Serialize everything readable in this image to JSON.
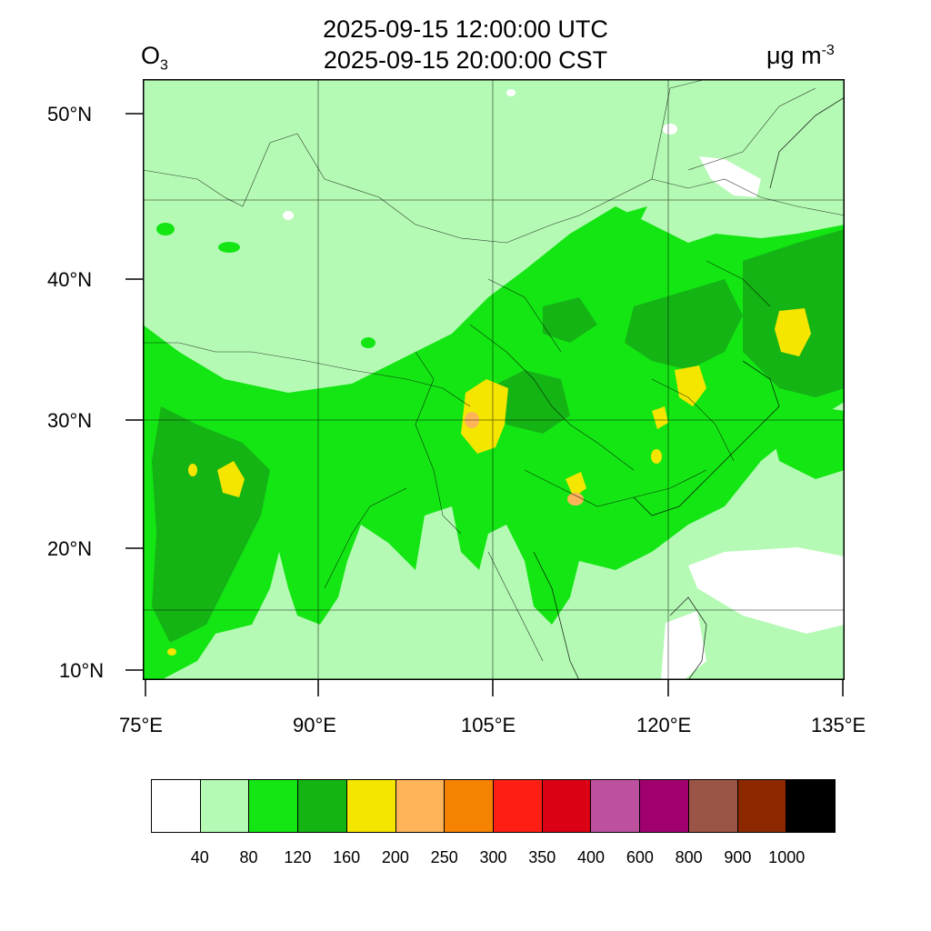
{
  "header": {
    "title_utc": "2025-09-15 12:00:00 UTC",
    "title_cst": "2025-09-15 20:00:00 CST",
    "species_base": "O",
    "species_sub": "3",
    "units_base": "μg m",
    "units_sup": "-3"
  },
  "axes": {
    "lon_labels": [
      "75°E",
      "90°E",
      "105°E",
      "120°E",
      "135°E"
    ],
    "lat_labels": [
      "50°N",
      "40°N",
      "30°N",
      "20°N",
      "10°N"
    ]
  },
  "colorbar": {
    "colors": [
      "#ffffff",
      "#b4fab4",
      "#14e614",
      "#14b414",
      "#f5e600",
      "#ffb45a",
      "#f58200",
      "#ff1e14",
      "#dc0014",
      "#be50a0",
      "#a0006e",
      "#9b5546",
      "#8c2800",
      "#000000"
    ],
    "labels": [
      "40",
      "80",
      "120",
      "160",
      "200",
      "250",
      "300",
      "350",
      "400",
      "600",
      "800",
      "900",
      "1000"
    ]
  },
  "map_legend": {
    "colors": {
      "background": "#b4fab4",
      "low": "#ffffff",
      "mid": "#14e614",
      "high": "#14b414",
      "peak": "#f5e600",
      "peak2": "#ffb45a"
    }
  }
}
